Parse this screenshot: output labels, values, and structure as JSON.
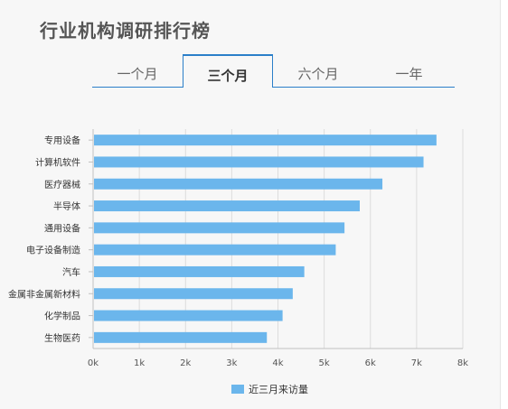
{
  "title": "行业机构调研排行榜",
  "tabs": [
    {
      "label": "一个月",
      "active": false
    },
    {
      "label": "三个月",
      "active": true
    },
    {
      "label": "六个月",
      "active": false
    },
    {
      "label": "一年",
      "active": false
    }
  ],
  "colors": {
    "bar": "#6bb6ec",
    "accent": "#2b7fc9",
    "grid": "#dcdcdc"
  },
  "chart_data": {
    "type": "bar",
    "orientation": "horizontal",
    "categories": [
      "专用设备",
      "计算机软件",
      "医疗器械",
      "半导体",
      "通用设备",
      "电子设备制造",
      "汽车",
      "金属非金属新材料",
      "化学制品",
      "生物医药"
    ],
    "series": [
      {
        "name": "近三月来访量",
        "values": [
          7430,
          7150,
          6260,
          5770,
          5440,
          5250,
          4570,
          4320,
          4100,
          3760
        ]
      }
    ],
    "xticks": [
      "0k",
      "1k",
      "2k",
      "3k",
      "4k",
      "5k",
      "6k",
      "7k",
      "8k"
    ],
    "xlim": [
      0,
      8000
    ],
    "grid": true,
    "legend": "bottom"
  }
}
